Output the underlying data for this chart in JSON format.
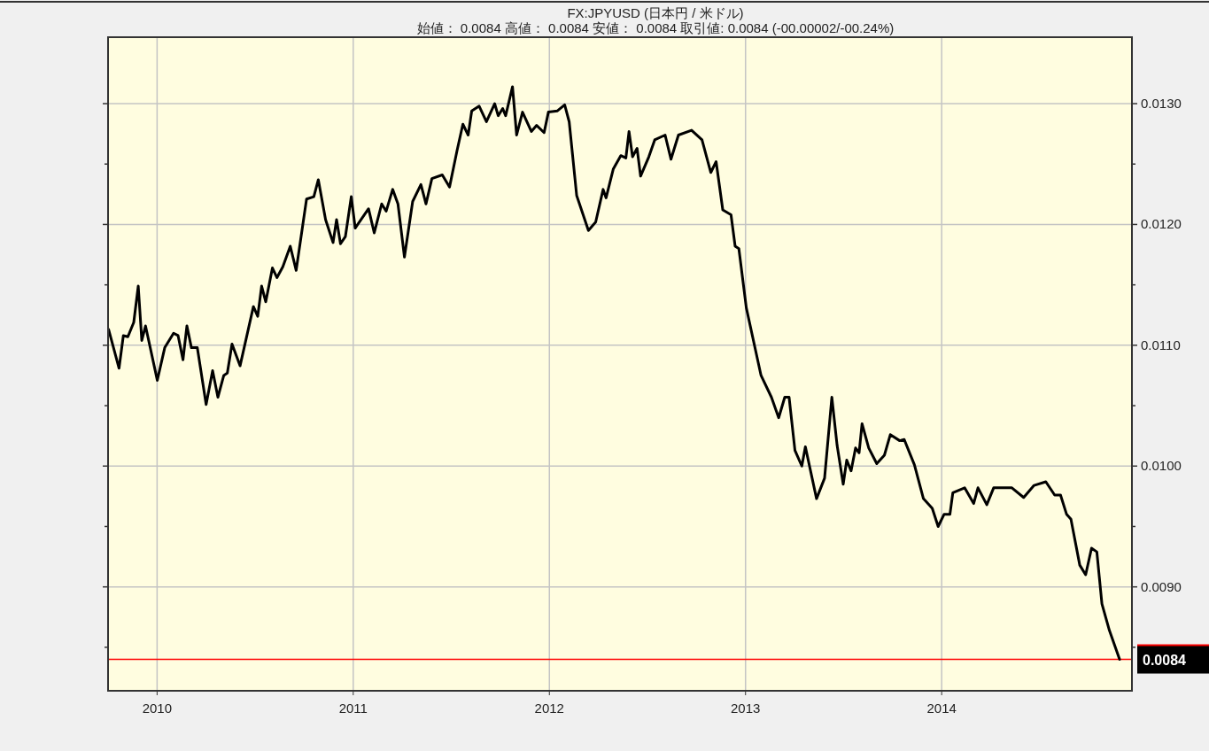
{
  "chart_data": {
    "type": "line",
    "title": "FX:JPYUSD (日本円 / 米ドル)",
    "subtitle": "始値： 0.0084 高値： 0.0084 安値： 0.0084 取引値: 0.0084 (-00.00002/-00.24%)",
    "x": [
      2009.753,
      2009.806,
      2009.828,
      2009.851,
      2009.881,
      2009.904,
      2009.922,
      2009.941,
      2010.001,
      2010.039,
      2010.084,
      2010.107,
      2010.132,
      2010.152,
      2010.175,
      2010.205,
      2010.25,
      2010.283,
      2010.31,
      2010.34,
      2010.358,
      2010.382,
      2010.423,
      2010.491,
      2010.513,
      2010.533,
      2010.554,
      2010.588,
      2010.611,
      2010.641,
      2010.679,
      2010.709,
      2010.762,
      2010.799,
      2010.822,
      2010.859,
      2010.897,
      2010.915,
      2010.935,
      2010.96,
      2010.99,
      2011.01,
      2011.078,
      2011.107,
      2011.145,
      2011.168,
      2011.201,
      2011.228,
      2011.261,
      2011.303,
      2011.345,
      2011.371,
      2011.401,
      2011.454,
      2011.491,
      2011.529,
      2011.559,
      2011.586,
      2011.604,
      2011.642,
      2011.679,
      2011.721,
      2011.739,
      2011.762,
      2011.777,
      2011.812,
      2011.833,
      2011.863,
      2011.908,
      2011.935,
      2011.973,
      2011.995,
      2012.041,
      2012.078,
      2012.101,
      2012.139,
      2012.199,
      2012.236,
      2012.274,
      2012.289,
      2012.326,
      2012.364,
      2012.39,
      2012.406,
      2012.424,
      2012.447,
      2012.465,
      2012.507,
      2012.537,
      2012.59,
      2012.62,
      2012.658,
      2012.725,
      2012.778,
      2012.823,
      2012.85,
      2012.884,
      2012.926,
      2012.947,
      2012.966,
      2013.004,
      2013.079,
      2013.132,
      2013.169,
      2013.2,
      2013.222,
      2013.252,
      2013.287,
      2013.305,
      2013.362,
      2013.403,
      2013.44,
      2013.467,
      2013.498,
      2013.516,
      2013.538,
      2013.561,
      2013.579,
      2013.594,
      2013.628,
      2013.669,
      2013.708,
      2013.738,
      2013.786,
      2013.809,
      2013.861,
      2013.907,
      2013.952,
      2013.982,
      2014.012,
      2014.042,
      2014.057,
      2014.117,
      2014.163,
      2014.185,
      2014.23,
      2014.265,
      2014.358,
      2014.418,
      2014.471,
      2014.531,
      2014.576,
      2014.606,
      2014.637,
      2014.659,
      2014.704,
      2014.734,
      2014.764,
      2014.791,
      2014.817,
      2014.855,
      2014.907
    ],
    "series": [
      {
        "color": "#000000",
        "values": [
          0.01113,
          0.01081,
          0.01108,
          0.01107,
          0.01119,
          0.01149,
          0.01104,
          0.01116,
          0.01071,
          0.01098,
          0.0111,
          0.01108,
          0.01088,
          0.01116,
          0.01098,
          0.01098,
          0.01051,
          0.01079,
          0.01057,
          0.01075,
          0.01077,
          0.01101,
          0.01083,
          0.01132,
          0.01124,
          0.01149,
          0.01136,
          0.01164,
          0.01156,
          0.01165,
          0.01182,
          0.01162,
          0.01221,
          0.01223,
          0.01237,
          0.01204,
          0.01185,
          0.01204,
          0.01184,
          0.0119,
          0.01223,
          0.01197,
          0.01213,
          0.01193,
          0.01217,
          0.01211,
          0.01229,
          0.01217,
          0.01173,
          0.01219,
          0.01233,
          0.01217,
          0.01238,
          0.01241,
          0.01231,
          0.01261,
          0.01283,
          0.01274,
          0.01294,
          0.01298,
          0.01285,
          0.013,
          0.0129,
          0.01296,
          0.0129,
          0.01314,
          0.01274,
          0.01293,
          0.01277,
          0.01282,
          0.01276,
          0.01293,
          0.01294,
          0.01299,
          0.01285,
          0.01224,
          0.01195,
          0.01202,
          0.01229,
          0.01222,
          0.01246,
          0.01257,
          0.01255,
          0.01277,
          0.01256,
          0.01263,
          0.0124,
          0.01256,
          0.0127,
          0.01274,
          0.01254,
          0.01274,
          0.01278,
          0.0127,
          0.01243,
          0.01252,
          0.01212,
          0.01208,
          0.01182,
          0.0118,
          0.01131,
          0.01075,
          0.01057,
          0.0104,
          0.01057,
          0.01057,
          0.01013,
          0.01,
          0.01016,
          0.00973,
          0.0099,
          0.01057,
          0.01017,
          0.00985,
          0.01005,
          0.00996,
          0.01015,
          0.01011,
          0.01035,
          0.01015,
          0.01002,
          0.01009,
          0.01026,
          0.01021,
          0.01022,
          0.01001,
          0.00973,
          0.00965,
          0.0095,
          0.0096,
          0.0096,
          0.00978,
          0.00982,
          0.00969,
          0.00982,
          0.00968,
          0.00982,
          0.00982,
          0.00974,
          0.00984,
          0.00987,
          0.00976,
          0.00976,
          0.0096,
          0.00956,
          0.00918,
          0.0091,
          0.00932,
          0.00929,
          0.00886,
          0.00864,
          0.0084
        ]
      }
    ],
    "xlim": [
      2009.75,
      2014.97
    ],
    "ylim": [
      0.00814,
      0.01355
    ],
    "xticks": [
      2010,
      2011,
      2012,
      2013,
      2014
    ],
    "yticks": [
      {
        "value": 0.0085,
        "label": null
      },
      {
        "value": 0.009,
        "label": "0.0090"
      },
      {
        "value": 0.0095,
        "label": null
      },
      {
        "value": 0.01,
        "label": "0.0100"
      },
      {
        "value": 0.0105,
        "label": null
      },
      {
        "value": 0.011,
        "label": "0.0110"
      },
      {
        "value": 0.0115,
        "label": null
      },
      {
        "value": 0.012,
        "label": "0.0120"
      },
      {
        "value": 0.0125,
        "label": null
      },
      {
        "value": 0.013,
        "label": "0.0130"
      }
    ],
    "grid": true,
    "ref_lines": [
      {
        "axis": "y",
        "value": 0.0084,
        "label": "0.0084",
        "color": "#ff0000"
      }
    ]
  }
}
